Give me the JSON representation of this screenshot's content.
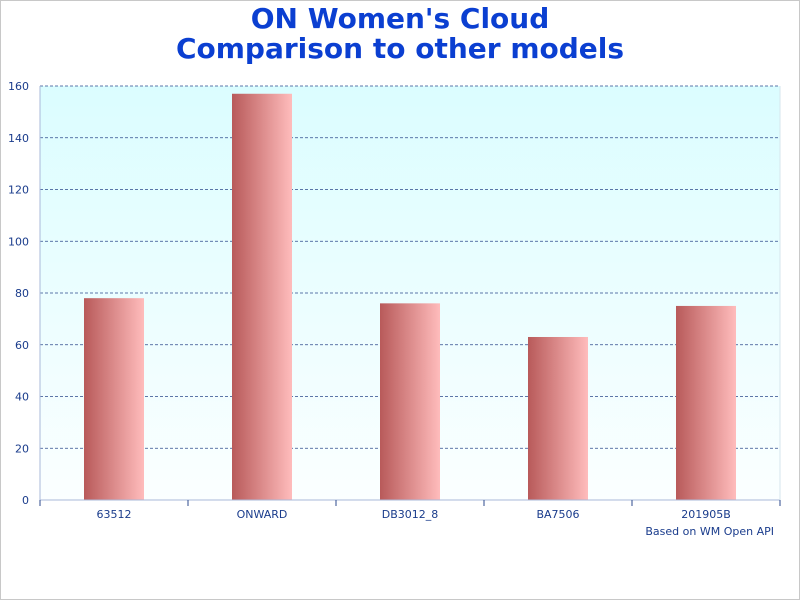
{
  "chart_data": {
    "type": "bar",
    "title": [
      "ON Women's Cloud",
      "Comparison to other models"
    ],
    "categories": [
      "63512",
      "ONWARD",
      "DB3012_8",
      "BA7506",
      "201905B"
    ],
    "values": [
      78,
      157,
      76,
      63,
      75
    ],
    "ylim": [
      0,
      160
    ],
    "yticks": [
      0,
      20,
      40,
      60,
      80,
      100,
      120,
      140,
      160
    ],
    "grid": true,
    "xlabel": "",
    "ylabel": "",
    "colors": {
      "title": "#0b3fd1",
      "bar_dark": "#b85a5a",
      "bar_light": "#ffbcbc",
      "grid": "#2d4a8c",
      "plot_bg_top": "#dbfdff",
      "plot_bg_bottom": "#fbffff",
      "tick_text": "#1a3c8c"
    }
  },
  "footer_note": "Based on WM Open API"
}
